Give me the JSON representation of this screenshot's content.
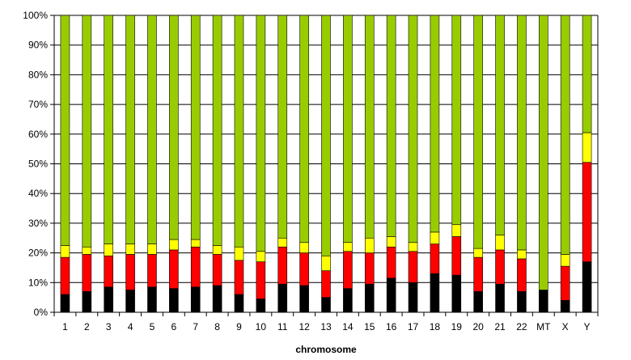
{
  "chart_data": {
    "type": "bar",
    "stacked": true,
    "title": "",
    "xlabel": "chromosome",
    "ylabel": "",
    "ylim": [
      0,
      100
    ],
    "y_ticks": [
      "0%",
      "10%",
      "20%",
      "30%",
      "40%",
      "50%",
      "60%",
      "70%",
      "80%",
      "90%",
      "100%"
    ],
    "grid": true,
    "legend": "none",
    "categories": [
      "1",
      "2",
      "3",
      "4",
      "5",
      "6",
      "7",
      "8",
      "9",
      "10",
      "11",
      "12",
      "13",
      "14",
      "15",
      "16",
      "17",
      "18",
      "19",
      "20",
      "21",
      "22",
      "MT",
      "X",
      "Y"
    ],
    "series": [
      {
        "color": "#000000",
        "values": [
          6,
          7,
          8.5,
          7.5,
          8.5,
          8,
          8.5,
          9,
          6,
          4.5,
          9.5,
          9,
          5,
          8,
          9.5,
          11.5,
          10,
          13,
          12.5,
          7,
          9.5,
          7,
          7.5,
          4,
          17
        ]
      },
      {
        "color": "#ff0000",
        "values": [
          12.5,
          12.5,
          10.5,
          12,
          11,
          13,
          13.5,
          10.5,
          11.5,
          12.5,
          12.5,
          11,
          9,
          12.5,
          10.5,
          10.5,
          10.5,
          10,
          13,
          11.5,
          11.5,
          11,
          0,
          11.5,
          33.5
        ]
      },
      {
        "color": "#ffff00",
        "values": [
          4,
          2.5,
          4,
          3.5,
          3.5,
          3.5,
          2.5,
          3,
          4.5,
          3.5,
          3,
          3.5,
          5,
          3,
          5,
          3.5,
          3,
          4,
          4,
          3,
          5,
          3,
          0,
          4,
          10
        ]
      },
      {
        "color": "#99cc00",
        "values": [
          77.5,
          78,
          77,
          77,
          77,
          75.5,
          75.5,
          77.5,
          78,
          79.5,
          75,
          76.5,
          81,
          76.5,
          75,
          74.5,
          76.5,
          73,
          70.5,
          78.5,
          74,
          79,
          92.5,
          80.5,
          39.5
        ]
      }
    ]
  }
}
